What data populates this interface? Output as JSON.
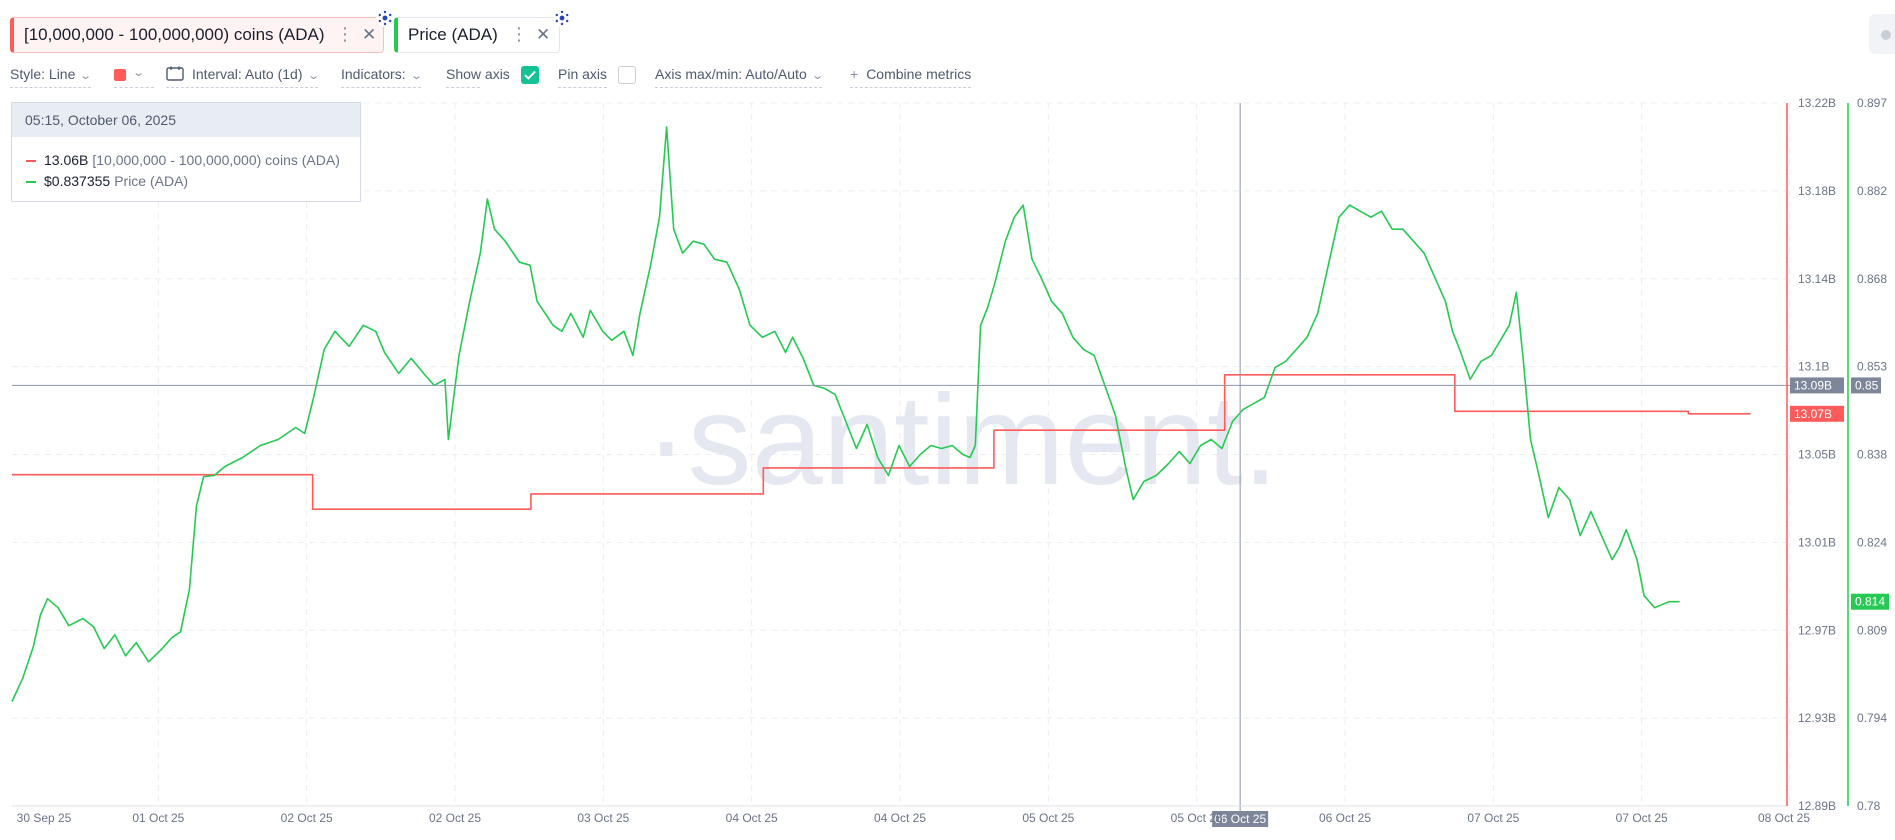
{
  "metrics": [
    {
      "label": "[10,000,000 - 100,000,000) coins (ADA)",
      "color": "#ff5b5b",
      "icon": "cardano-icon"
    },
    {
      "label": "Price (ADA)",
      "color": "#26c953",
      "icon": "cardano-icon"
    }
  ],
  "toolbar": {
    "style": "Style: Line",
    "interval": "Interval: Auto (1d)",
    "indicators": "Indicators:",
    "show_axis": "Show axis",
    "show_axis_checked": true,
    "pin_axis": "Pin axis",
    "pin_axis_checked": false,
    "axis_maxmin": "Axis max/min: Auto/Auto",
    "combine": "Combine metrics"
  },
  "tooltip": {
    "datetime": "05:15, October 06, 2025",
    "rows": [
      {
        "value": "13.06B",
        "name": "[10,000,000 - 100,000,000) coins (ADA)",
        "color": "#ff5b5b"
      },
      {
        "value": "$0.837355",
        "name": "Price (ADA)",
        "color": "#26c953"
      }
    ]
  },
  "watermark": "·santiment.",
  "chart_data": {
    "type": "line",
    "x_ticks": [
      "30 Sep 25",
      "01 Oct 25",
      "02 Oct 25",
      "02 Oct 25",
      "03 Oct 25",
      "04 Oct 25",
      "04 Oct 25",
      "05 Oct 25",
      "05 Oct 25",
      "06 Oct 25",
      "07 Oct 25",
      "07 Oct 25",
      "08 Oct 25"
    ],
    "x_cursor_label": "06 Oct 25",
    "x_cursor_fraction": 0.6923,
    "y_left": {
      "ticks": [
        "13.22B",
        "13.18B",
        "13.14B",
        "13.1B",
        "13.05B",
        "13.01B",
        "12.97B",
        "12.93B",
        "12.89B"
      ],
      "min": 12.89,
      "max": 13.22,
      "unit": "B",
      "color": "#ff5b5b",
      "cursor_label": "13.09B",
      "last_label": "13.07B"
    },
    "y_right": {
      "ticks": [
        "0.897",
        "0.882",
        "0.868",
        "0.853",
        "0.838",
        "0.824",
        "0.809",
        "0.794",
        "0.78"
      ],
      "min": 0.78,
      "max": 0.897,
      "color": "#26c953",
      "cursor_label": "0.85",
      "last_label": "0.814"
    },
    "y_cursor_value_right": 0.85,
    "series": [
      {
        "name": "[10,000,000 - 100,000,000) coins (ADA)",
        "color": "#ff5b5b",
        "axis": "left",
        "step": true,
        "points": [
          [
            0.0,
            13.0455
          ],
          [
            0.1695,
            13.0455
          ],
          [
            0.1695,
            13.0293
          ],
          [
            0.2925,
            13.0293
          ],
          [
            0.2925,
            13.0365
          ],
          [
            0.4235,
            13.0365
          ],
          [
            0.4235,
            13.0487
          ],
          [
            0.5535,
            13.0487
          ],
          [
            0.5535,
            13.0664
          ],
          [
            0.6836,
            13.0664
          ],
          [
            0.6836,
            13.0924
          ],
          [
            0.8133,
            13.0924
          ],
          [
            0.8133,
            13.0753
          ],
          [
            0.9449,
            13.0753
          ],
          [
            0.9449,
            13.0741
          ],
          [
            0.98,
            13.0741
          ]
        ]
      },
      {
        "name": "Price (ADA)",
        "color": "#26c953",
        "axis": "right",
        "points": [
          [
            0.0,
            0.7974
          ],
          [
            0.006,
            0.8012
          ],
          [
            0.012,
            0.8065
          ],
          [
            0.016,
            0.8118
          ],
          [
            0.02,
            0.8145
          ],
          [
            0.026,
            0.813
          ],
          [
            0.032,
            0.81
          ],
          [
            0.04,
            0.8112
          ],
          [
            0.046,
            0.8098
          ],
          [
            0.052,
            0.8062
          ],
          [
            0.058,
            0.8085
          ],
          [
            0.064,
            0.805
          ],
          [
            0.07,
            0.8072
          ],
          [
            0.077,
            0.804
          ],
          [
            0.084,
            0.806
          ],
          [
            0.09,
            0.808
          ],
          [
            0.095,
            0.809
          ],
          [
            0.1,
            0.816
          ],
          [
            0.104,
            0.83
          ],
          [
            0.108,
            0.8348
          ],
          [
            0.114,
            0.835
          ],
          [
            0.12,
            0.8365
          ],
          [
            0.13,
            0.838
          ],
          [
            0.14,
            0.84
          ],
          [
            0.15,
            0.841
          ],
          [
            0.16,
            0.843
          ],
          [
            0.165,
            0.842
          ],
          [
            0.17,
            0.848
          ],
          [
            0.176,
            0.856
          ],
          [
            0.182,
            0.859
          ],
          [
            0.19,
            0.8565
          ],
          [
            0.198,
            0.86
          ],
          [
            0.205,
            0.859
          ],
          [
            0.21,
            0.8555
          ],
          [
            0.218,
            0.852
          ],
          [
            0.225,
            0.8545
          ],
          [
            0.232,
            0.852
          ],
          [
            0.238,
            0.85
          ],
          [
            0.244,
            0.851
          ],
          [
            0.246,
            0.841
          ],
          [
            0.252,
            0.855
          ],
          [
            0.258,
            0.864
          ],
          [
            0.264,
            0.872
          ],
          [
            0.268,
            0.881
          ],
          [
            0.272,
            0.876
          ],
          [
            0.278,
            0.874
          ],
          [
            0.286,
            0.8705
          ],
          [
            0.292,
            0.87
          ],
          [
            0.296,
            0.864
          ],
          [
            0.305,
            0.86
          ],
          [
            0.31,
            0.859
          ],
          [
            0.315,
            0.862
          ],
          [
            0.322,
            0.858
          ],
          [
            0.326,
            0.8625
          ],
          [
            0.333,
            0.859
          ],
          [
            0.338,
            0.8575
          ],
          [
            0.345,
            0.859
          ],
          [
            0.35,
            0.855
          ],
          [
            0.354,
            0.862
          ],
          [
            0.36,
            0.87
          ],
          [
            0.365,
            0.878
          ],
          [
            0.369,
            0.893
          ],
          [
            0.373,
            0.876
          ],
          [
            0.378,
            0.872
          ],
          [
            0.384,
            0.874
          ],
          [
            0.39,
            0.8735
          ],
          [
            0.396,
            0.871
          ],
          [
            0.403,
            0.8705
          ],
          [
            0.41,
            0.866
          ],
          [
            0.416,
            0.86
          ],
          [
            0.423,
            0.858
          ],
          [
            0.43,
            0.859
          ],
          [
            0.436,
            0.8555
          ],
          [
            0.44,
            0.858
          ],
          [
            0.446,
            0.8545
          ],
          [
            0.452,
            0.85
          ],
          [
            0.458,
            0.8495
          ],
          [
            0.464,
            0.8485
          ],
          [
            0.47,
            0.844
          ],
          [
            0.476,
            0.8395
          ],
          [
            0.482,
            0.8435
          ],
          [
            0.488,
            0.838
          ],
          [
            0.494,
            0.835
          ],
          [
            0.5,
            0.84
          ],
          [
            0.506,
            0.8365
          ],
          [
            0.512,
            0.8385
          ],
          [
            0.518,
            0.84
          ],
          [
            0.524,
            0.8395
          ],
          [
            0.53,
            0.84
          ],
          [
            0.536,
            0.8385
          ],
          [
            0.54,
            0.838
          ],
          [
            0.543,
            0.84
          ],
          [
            0.546,
            0.86
          ],
          [
            0.55,
            0.863
          ],
          [
            0.554,
            0.867
          ],
          [
            0.56,
            0.874
          ],
          [
            0.565,
            0.878
          ],
          [
            0.57,
            0.88
          ],
          [
            0.575,
            0.871
          ],
          [
            0.58,
            0.868
          ],
          [
            0.586,
            0.864
          ],
          [
            0.592,
            0.862
          ],
          [
            0.598,
            0.858
          ],
          [
            0.604,
            0.856
          ],
          [
            0.61,
            0.855
          ],
          [
            0.616,
            0.85
          ],
          [
            0.622,
            0.845
          ],
          [
            0.628,
            0.836
          ],
          [
            0.632,
            0.831
          ],
          [
            0.638,
            0.834
          ],
          [
            0.645,
            0.835
          ],
          [
            0.652,
            0.837
          ],
          [
            0.658,
            0.839
          ],
          [
            0.664,
            0.837
          ],
          [
            0.67,
            0.84
          ],
          [
            0.676,
            0.841
          ],
          [
            0.682,
            0.8395
          ],
          [
            0.688,
            0.844
          ],
          [
            0.694,
            0.846
          ],
          [
            0.7,
            0.847
          ],
          [
            0.706,
            0.848
          ],
          [
            0.712,
            0.853
          ],
          [
            0.718,
            0.854
          ],
          [
            0.724,
            0.856
          ],
          [
            0.73,
            0.858
          ],
          [
            0.736,
            0.862
          ],
          [
            0.742,
            0.87
          ],
          [
            0.748,
            0.878
          ],
          [
            0.754,
            0.88
          ],
          [
            0.76,
            0.879
          ],
          [
            0.766,
            0.878
          ],
          [
            0.772,
            0.879
          ],
          [
            0.778,
            0.876
          ],
          [
            0.784,
            0.876
          ],
          [
            0.79,
            0.874
          ],
          [
            0.796,
            0.872
          ],
          [
            0.802,
            0.868
          ],
          [
            0.808,
            0.864
          ],
          [
            0.812,
            0.859
          ],
          [
            0.816,
            0.856
          ],
          [
            0.822,
            0.851
          ],
          [
            0.828,
            0.854
          ],
          [
            0.834,
            0.855
          ],
          [
            0.84,
            0.858
          ],
          [
            0.844,
            0.86
          ],
          [
            0.848,
            0.8655
          ],
          [
            0.852,
            0.854
          ],
          [
            0.856,
            0.841
          ],
          [
            0.86,
            0.836
          ],
          [
            0.866,
            0.828
          ],
          [
            0.872,
            0.833
          ],
          [
            0.878,
            0.831
          ],
          [
            0.884,
            0.825
          ],
          [
            0.89,
            0.829
          ],
          [
            0.896,
            0.825
          ],
          [
            0.902,
            0.821
          ],
          [
            0.906,
            0.823
          ],
          [
            0.91,
            0.826
          ],
          [
            0.916,
            0.821
          ],
          [
            0.92,
            0.815
          ],
          [
            0.926,
            0.813
          ],
          [
            0.93,
            0.8135
          ],
          [
            0.934,
            0.814
          ],
          [
            0.94,
            0.814
          ]
        ]
      }
    ]
  }
}
